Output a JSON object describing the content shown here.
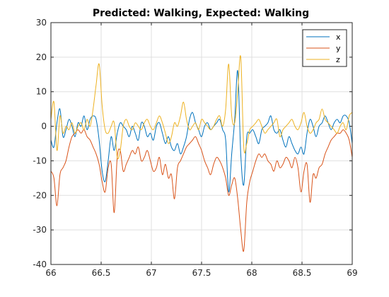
{
  "chart_data": {
    "type": "line",
    "title": "Predicted: Walking, Expected: Walking",
    "xlabel": "",
    "ylabel": "",
    "xlim": [
      66,
      69
    ],
    "ylim": [
      -40,
      30
    ],
    "xticks": [
      "66",
      "66.5",
      "67",
      "67.5",
      "68",
      "68.5",
      "69"
    ],
    "yticks": [
      "30",
      "20",
      "10",
      "0",
      "-10",
      "-20",
      "-30",
      "-40"
    ],
    "grid": true,
    "legend_position": "top-right",
    "series": [
      {
        "name": "x",
        "color": "#0072BD",
        "x": [
          66.0,
          66.03,
          66.06,
          66.09,
          66.12,
          66.15,
          66.18,
          66.21,
          66.24,
          66.27,
          66.3,
          66.33,
          66.36,
          66.39,
          66.42,
          66.45,
          66.48,
          66.51,
          66.54,
          66.57,
          66.6,
          66.63,
          66.66,
          66.69,
          66.72,
          66.75,
          66.78,
          66.81,
          66.84,
          66.87,
          66.9,
          66.93,
          66.96,
          66.99,
          67.02,
          67.05,
          67.08,
          67.11,
          67.14,
          67.17,
          67.2,
          67.23,
          67.26,
          67.29,
          67.32,
          67.35,
          67.38,
          67.41,
          67.44,
          67.47,
          67.5,
          67.53,
          67.56,
          67.59,
          67.62,
          67.65,
          67.68,
          67.71,
          67.74,
          67.77,
          67.8,
          67.83,
          67.86,
          67.89,
          67.92,
          67.95,
          67.98,
          68.01,
          68.04,
          68.07,
          68.1,
          68.13,
          68.16,
          68.19,
          68.22,
          68.25,
          68.28,
          68.31,
          68.34,
          68.37,
          68.4,
          68.43,
          68.46,
          68.49,
          68.52,
          68.55,
          68.58,
          68.61,
          68.64,
          68.67,
          68.7,
          68.73,
          68.76,
          68.79,
          68.82,
          68.85,
          68.88,
          68.91,
          68.94,
          68.97,
          69.0
        ],
        "y": [
          -4,
          -6,
          1,
          5,
          -3,
          -1,
          2,
          0,
          -3,
          1,
          0,
          3,
          -1,
          2,
          3,
          2,
          -4,
          -13,
          -16,
          -10,
          -3,
          -7,
          -2,
          1,
          0,
          -1,
          -3,
          0,
          -2,
          -4,
          1,
          0,
          -3,
          -2,
          -4,
          0,
          1,
          -2,
          -5,
          -3,
          -6,
          -7,
          -5,
          -8,
          -6,
          -3,
          2,
          4,
          1,
          -1,
          -3,
          0,
          1,
          -1,
          0,
          1,
          2,
          -1,
          -4,
          -19,
          -8,
          2,
          16,
          -8,
          -17,
          -3,
          -2,
          -1,
          -3,
          -5,
          -1,
          0,
          1,
          3,
          -1,
          -2,
          -1,
          -4,
          -6,
          -3,
          -5,
          -7,
          -8,
          -6,
          -8,
          -2,
          2,
          0,
          -3,
          0,
          1,
          3,
          1,
          -1,
          1,
          2,
          1,
          3,
          3,
          1,
          -5
        ]
      },
      {
        "name": "y",
        "color": "#D95319",
        "x": [
          66.0,
          66.03,
          66.06,
          66.09,
          66.12,
          66.15,
          66.18,
          66.21,
          66.24,
          66.27,
          66.3,
          66.33,
          66.36,
          66.39,
          66.42,
          66.45,
          66.48,
          66.51,
          66.54,
          66.57,
          66.6,
          66.63,
          66.66,
          66.69,
          66.72,
          66.75,
          66.78,
          66.81,
          66.84,
          66.87,
          66.9,
          66.93,
          66.96,
          66.99,
          67.02,
          67.05,
          67.08,
          67.11,
          67.14,
          67.17,
          67.2,
          67.23,
          67.26,
          67.29,
          67.32,
          67.35,
          67.38,
          67.41,
          67.44,
          67.47,
          67.5,
          67.53,
          67.56,
          67.59,
          67.62,
          67.65,
          67.68,
          67.71,
          67.74,
          67.77,
          67.8,
          67.83,
          67.86,
          67.89,
          67.92,
          67.95,
          67.98,
          68.01,
          68.04,
          68.07,
          68.1,
          68.13,
          68.16,
          68.19,
          68.22,
          68.25,
          68.28,
          68.31,
          68.34,
          68.37,
          68.4,
          68.43,
          68.46,
          68.49,
          68.52,
          68.55,
          68.58,
          68.61,
          68.64,
          68.67,
          68.7,
          68.73,
          68.76,
          68.79,
          68.82,
          68.85,
          68.88,
          68.91,
          68.94,
          68.97,
          69.0
        ],
        "y": [
          -13,
          -15,
          -23,
          -14,
          -12,
          -10,
          -6,
          -3,
          -2,
          -1,
          -2,
          -1,
          -3,
          -4,
          -6,
          -8,
          -11,
          -16,
          -19,
          -12,
          -11,
          -25,
          -9,
          -7,
          -13,
          -11,
          -9,
          -7,
          -8,
          -6,
          -10,
          -9,
          -7,
          -10,
          -13,
          -12,
          -9,
          -14,
          -11,
          -15,
          -14,
          -21,
          -12,
          -10,
          -8,
          -6,
          -5,
          -4,
          -3,
          -5,
          -7,
          -10,
          -12,
          -14,
          -11,
          -9,
          -10,
          -12,
          -15,
          -20,
          -17,
          -15,
          -21,
          -30,
          -36,
          -22,
          -16,
          -13,
          -10,
          -8,
          -9,
          -8,
          -10,
          -11,
          -13,
          -10,
          -12,
          -11,
          -9,
          -10,
          -12,
          -9,
          -12,
          -19,
          -13,
          -11,
          -22,
          -14,
          -15,
          -12,
          -11,
          -8,
          -6,
          -4,
          -3,
          -2,
          -2,
          -1,
          -2,
          -4,
          -9
        ]
      },
      {
        "name": "z",
        "color": "#EDB120",
        "x": [
          66.0,
          66.03,
          66.06,
          66.09,
          66.12,
          66.15,
          66.18,
          66.21,
          66.24,
          66.27,
          66.3,
          66.33,
          66.36,
          66.39,
          66.42,
          66.45,
          66.48,
          66.51,
          66.54,
          66.57,
          66.6,
          66.63,
          66.66,
          66.69,
          66.72,
          66.75,
          66.78,
          66.81,
          66.84,
          66.87,
          66.9,
          66.93,
          66.96,
          66.99,
          67.02,
          67.05,
          67.08,
          67.11,
          67.14,
          67.17,
          67.2,
          67.23,
          67.26,
          67.29,
          67.32,
          67.35,
          67.38,
          67.41,
          67.44,
          67.47,
          67.5,
          67.53,
          67.56,
          67.59,
          67.62,
          67.65,
          67.68,
          67.71,
          67.74,
          67.77,
          67.8,
          67.83,
          67.86,
          67.89,
          67.92,
          67.95,
          67.98,
          68.01,
          68.04,
          68.07,
          68.1,
          68.13,
          68.16,
          68.19,
          68.22,
          68.25,
          68.28,
          68.31,
          68.34,
          68.37,
          68.4,
          68.43,
          68.46,
          68.49,
          68.52,
          68.55,
          68.58,
          68.61,
          68.64,
          68.67,
          68.7,
          68.73,
          68.76,
          68.79,
          68.82,
          68.85,
          68.88,
          68.91,
          68.94,
          68.97,
          69.0
        ],
        "y": [
          2,
          7,
          -7,
          3,
          -2,
          0,
          -1,
          1,
          -2,
          0,
          1,
          -1,
          2,
          0,
          5,
          12,
          18,
          6,
          -1,
          -2,
          0,
          1,
          -9,
          -7,
          0,
          2,
          0,
          -1,
          1,
          0,
          -1,
          1,
          2,
          0,
          -1,
          1,
          3,
          1,
          -2,
          -5,
          -3,
          1,
          0,
          3,
          7,
          2,
          -1,
          0,
          1,
          -1,
          2,
          1,
          0,
          -1,
          0,
          2,
          3,
          0,
          5,
          18,
          3,
          1,
          10,
          20,
          -6,
          -5,
          -1,
          0,
          1,
          2,
          0,
          -2,
          -1,
          0,
          1,
          2,
          -3,
          -1,
          0,
          1,
          2,
          0,
          -1,
          1,
          4,
          0,
          -2,
          -1,
          1,
          2,
          5,
          2,
          1,
          0,
          -1,
          -2,
          0,
          1,
          -1,
          3,
          4
        ]
      }
    ]
  }
}
